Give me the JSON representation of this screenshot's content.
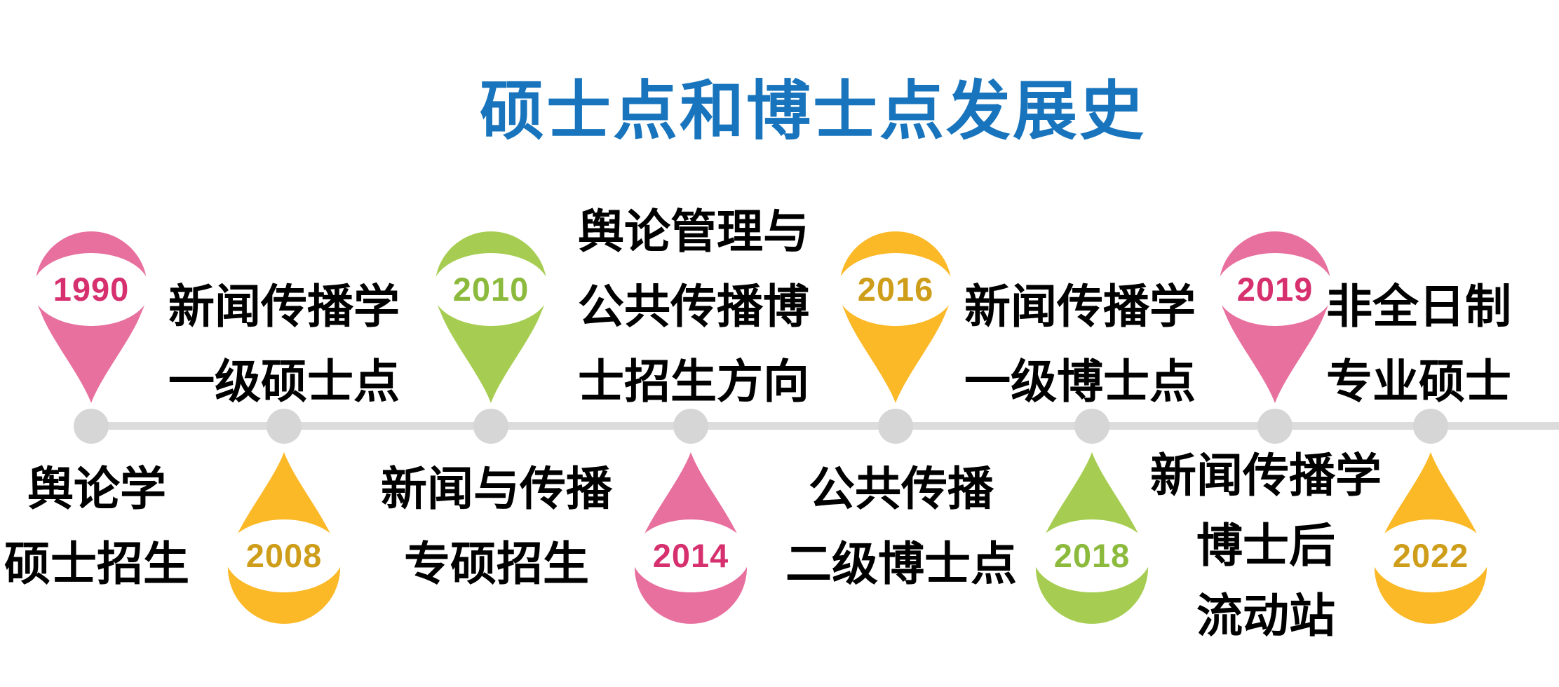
{
  "title": "硕士点和博士点发展史",
  "palette": {
    "title_blue": "#1874BC",
    "line_gray": "#DCDCDC",
    "node_gray": "#D6D6D6",
    "label_black": "#000000",
    "pink": {
      "body": "#E8709E",
      "year": "#D6306F"
    },
    "gold": {
      "body": "#FBB827",
      "year": "#CE9E1B"
    },
    "green": {
      "body": "#A6CD52",
      "year": "#8CBA3D"
    }
  },
  "timeline": {
    "events": [
      {
        "year": "1990",
        "color": "pink",
        "marker_side": "above",
        "label_lines": [
          "舆论学",
          "硕士招生"
        ]
      },
      {
        "year": "2008",
        "color": "gold",
        "marker_side": "below",
        "label_lines": [
          "新闻传播学",
          "一级硕士点"
        ]
      },
      {
        "year": "2010",
        "color": "green",
        "marker_side": "above",
        "label_lines": [
          "新闻与传播",
          "专硕招生"
        ]
      },
      {
        "year": "2014",
        "color": "pink",
        "marker_side": "below",
        "label_lines": [
          "舆论管理与",
          "公共传播博",
          "士招生方向"
        ]
      },
      {
        "year": "2016",
        "color": "gold",
        "marker_side": "above",
        "label_lines": [
          "公共传播",
          "二级博士点"
        ]
      },
      {
        "year": "2018",
        "color": "green",
        "marker_side": "below",
        "label_lines": [
          "新闻传播学",
          "一级博士点"
        ]
      },
      {
        "year": "2019",
        "color": "pink",
        "marker_side": "above",
        "label_lines": [
          "新闻传播学",
          "博士后",
          "流动站"
        ]
      },
      {
        "year": "2022",
        "color": "gold",
        "marker_side": "below",
        "label_lines": [
          "非全日制",
          "专业硕士"
        ]
      }
    ]
  }
}
